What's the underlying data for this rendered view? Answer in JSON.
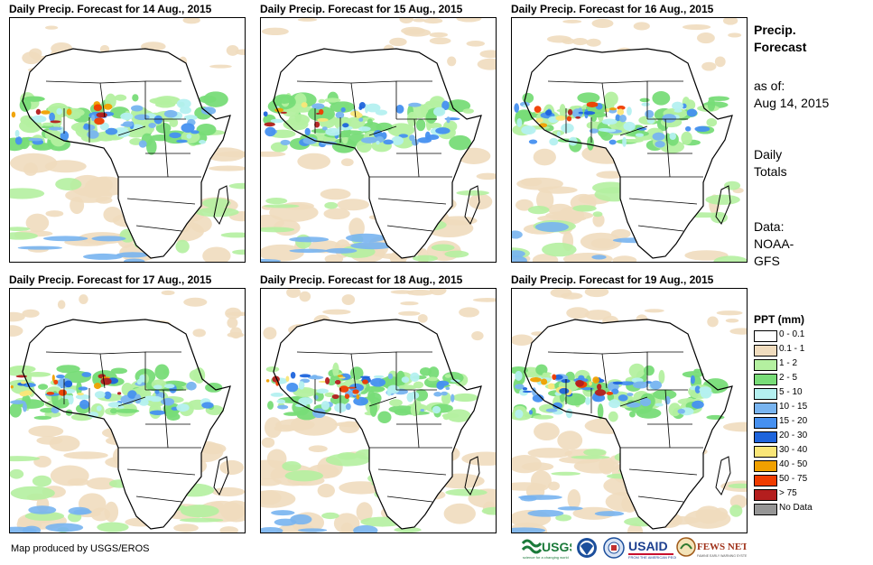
{
  "panels": [
    {
      "title": "Daily Precip. Forecast for 14 Aug., 2015"
    },
    {
      "title": "Daily Precip. Forecast for 15 Aug., 2015"
    },
    {
      "title": "Daily Precip. Forecast for 16 Aug., 2015"
    },
    {
      "title": "Daily Precip. Forecast for 17 Aug., 2015"
    },
    {
      "title": "Daily Precip. Forecast for 18 Aug., 2015"
    },
    {
      "title": "Daily Precip. Forecast for 19 Aug., 2015"
    }
  ],
  "side": {
    "title_line1": "Precip.",
    "title_line2": "Forecast",
    "asof_line1": "as of:",
    "asof_line2": "Aug 14, 2015",
    "totals_line1": "Daily",
    "totals_line2": "Totals",
    "data_line1": "Data:",
    "data_line2": "NOAA-",
    "data_line3": "GFS"
  },
  "legend": {
    "title": "PPT (mm)",
    "items": [
      {
        "label": "0 - 0.1",
        "color": "#ffffff"
      },
      {
        "label": "0.1 - 1",
        "color": "#f0dcbe"
      },
      {
        "label": "1 - 2",
        "color": "#b4f0a0"
      },
      {
        "label": "2 - 5",
        "color": "#78dc78"
      },
      {
        "label": "5 - 10",
        "color": "#b4f0f0"
      },
      {
        "label": "10 - 15",
        "color": "#78b4f0"
      },
      {
        "label": "15 - 20",
        "color": "#4690f0"
      },
      {
        "label": "20 - 30",
        "color": "#1e64dc"
      },
      {
        "label": "30 - 40",
        "color": "#fae678"
      },
      {
        "label": "40 - 50",
        "color": "#f0a000"
      },
      {
        "label": "50 - 75",
        "color": "#f03c00"
      },
      {
        "label": "> 75",
        "color": "#b41e1e"
      },
      {
        "label": "No Data",
        "color": "#969696"
      }
    ]
  },
  "credit": "Map produced by USGS/EROS",
  "logos": {
    "usgs": "USGS",
    "usaid": "USAID",
    "fewsnet": "FEWS NET"
  }
}
